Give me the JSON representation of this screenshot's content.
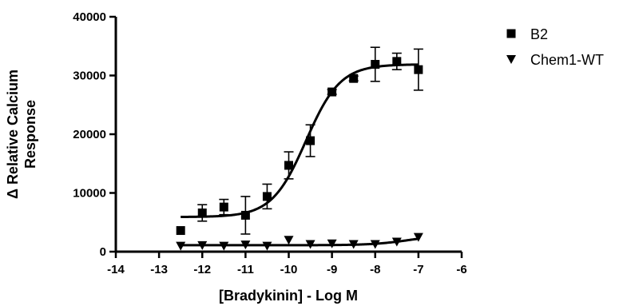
{
  "chart_data": {
    "type": "scatter",
    "xlabel": "[Bradykinin] - Log M",
    "ylabel_lines": [
      "Δ Relative Calcium",
      "Response"
    ],
    "xlim": [
      -14,
      -6
    ],
    "ylim": [
      0,
      40000
    ],
    "xticks": [
      -14,
      -13,
      -12,
      -11,
      -10,
      -9,
      -8,
      -7,
      -6
    ],
    "yticks": [
      0,
      10000,
      20000,
      30000,
      40000
    ],
    "xtick_labels": [
      "-14",
      "-13",
      "-12",
      "-11",
      "-10",
      "-9",
      "-8",
      "-7",
      "-6"
    ],
    "ytick_labels": [
      "0",
      "10000",
      "20000",
      "30000",
      "40000"
    ],
    "grid": false,
    "legend_position": "top-right outside",
    "series": [
      {
        "name": "B2",
        "marker": "square",
        "color": "#000000",
        "points": [
          {
            "x": -12.5,
            "y": 3600,
            "err": 0
          },
          {
            "x": -12.0,
            "y": 6600,
            "err": 1400
          },
          {
            "x": -11.5,
            "y": 7600,
            "err": 1300
          },
          {
            "x": -11.0,
            "y": 6200,
            "err": 3200
          },
          {
            "x": -10.5,
            "y": 9400,
            "err": 2100
          },
          {
            "x": -10.0,
            "y": 14700,
            "err": 2300
          },
          {
            "x": -9.5,
            "y": 18900,
            "err": 2700
          },
          {
            "x": -9.0,
            "y": 27200,
            "err": 400
          },
          {
            "x": -8.5,
            "y": 29500,
            "err": 400
          },
          {
            "x": -8.0,
            "y": 31900,
            "err": 2900
          },
          {
            "x": -7.5,
            "y": 32400,
            "err": 1400
          },
          {
            "x": -7.0,
            "y": 31000,
            "err": 3500
          }
        ],
        "fit": {
          "bottom": 5900,
          "top": 31900,
          "logEC50": -9.6,
          "hill": 1.1,
          "x_range": [
            -12.5,
            -7.0
          ]
        }
      },
      {
        "name": "Chem1-WT",
        "marker": "triangle-down",
        "color": "#000000",
        "points": [
          {
            "x": -12.5,
            "y": 1000,
            "err": 0
          },
          {
            "x": -12.0,
            "y": 1100,
            "err": 0
          },
          {
            "x": -11.5,
            "y": 1000,
            "err": 0
          },
          {
            "x": -11.0,
            "y": 1200,
            "err": 0
          },
          {
            "x": -10.5,
            "y": 1000,
            "err": 0
          },
          {
            "x": -10.0,
            "y": 2000,
            "err": 0
          },
          {
            "x": -9.5,
            "y": 1300,
            "err": 0
          },
          {
            "x": -9.0,
            "y": 1400,
            "err": 0
          },
          {
            "x": -8.5,
            "y": 1300,
            "err": 0
          },
          {
            "x": -8.0,
            "y": 1300,
            "err": 0
          },
          {
            "x": -7.5,
            "y": 1700,
            "err": 0
          },
          {
            "x": -7.0,
            "y": 2500,
            "err": 0
          }
        ],
        "fit": {
          "bottom": 1100,
          "top": 2900,
          "logEC50": -7.2,
          "hill": 1.0,
          "x_range": [
            -12.5,
            -7.0
          ]
        }
      }
    ]
  }
}
